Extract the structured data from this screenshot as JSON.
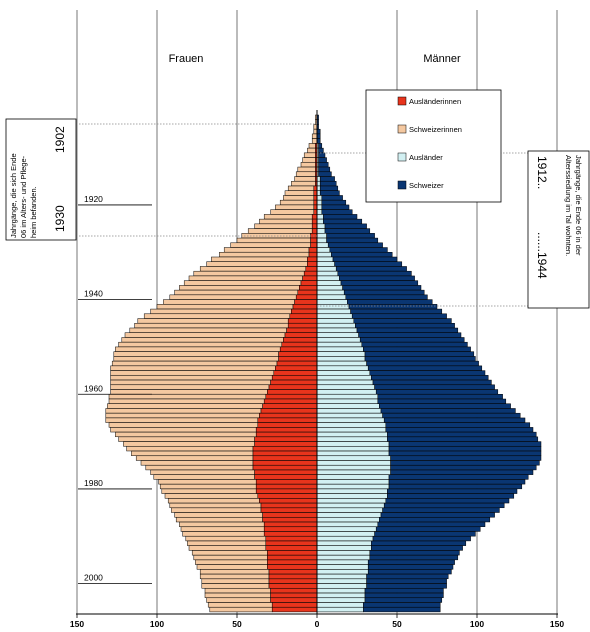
{
  "chart_data": {
    "type": "bar",
    "orientation": "horizontal-population-pyramid",
    "side_labels": {
      "left": "Frauen",
      "right": "Männer"
    },
    "legend": {
      "placement": "top-right",
      "items": [
        {
          "label": "Ausländerinnen",
          "color": "#e8341c"
        },
        {
          "label": "Schweizerinnen",
          "color": "#f4c8a0"
        },
        {
          "label": "Ausländer",
          "color": "#d2f0f2"
        },
        {
          "label": "Schweizer",
          "color": "#0a3672"
        }
      ]
    },
    "x_ticks": [
      -150,
      -100,
      -50,
      0,
      50,
      100,
      150
    ],
    "x_tick_labels": [
      "150",
      "100",
      "50",
      "0",
      "50",
      "100",
      "150"
    ],
    "xlim": [
      -150,
      150
    ],
    "year_labels": [
      "1920",
      "1940",
      "1960",
      "1980",
      "2000"
    ],
    "grid": "vertical",
    "years": [
      1902,
      1903,
      1904,
      1905,
      1906,
      1907,
      1908,
      1909,
      1910,
      1911,
      1912,
      1913,
      1914,
      1915,
      1916,
      1917,
      1918,
      1919,
      1920,
      1921,
      1922,
      1923,
      1924,
      1925,
      1926,
      1927,
      1928,
      1929,
      1930,
      1931,
      1932,
      1933,
      1934,
      1935,
      1936,
      1937,
      1938,
      1939,
      1940,
      1941,
      1942,
      1943,
      1944,
      1945,
      1946,
      1947,
      1948,
      1949,
      1950,
      1951,
      1952,
      1953,
      1954,
      1955,
      1956,
      1957,
      1958,
      1959,
      1960,
      1961,
      1962,
      1963,
      1964,
      1965,
      1966,
      1967,
      1968,
      1969,
      1970,
      1971,
      1972,
      1973,
      1974,
      1975,
      1976,
      1977,
      1978,
      1979,
      1980,
      1981,
      1982,
      1983,
      1984,
      1985,
      1986,
      1987,
      1988,
      1989,
      1990,
      1991,
      1992,
      1993,
      1994,
      1995,
      1996,
      1997,
      1998,
      1999,
      2000,
      2001,
      2002,
      2003,
      2004,
      2005,
      2006
    ],
    "series": [
      {
        "name": "Ausländerinnen",
        "values": [
          0,
          0,
          0,
          0,
          0,
          0,
          1,
          1,
          1,
          1,
          1,
          1,
          1,
          1,
          1,
          2,
          2,
          2,
          2,
          2,
          2,
          3,
          3,
          3,
          3,
          4,
          4,
          4,
          5,
          5,
          6,
          6,
          7,
          8,
          9,
          10,
          11,
          12,
          13,
          14,
          15,
          16,
          17,
          18,
          18,
          19,
          20,
          21,
          22,
          23,
          24,
          24,
          25,
          26,
          27,
          28,
          29,
          30,
          31,
          32,
          33,
          34,
          35,
          36,
          37,
          37,
          38,
          38,
          39,
          39,
          40,
          40,
          40,
          40,
          40,
          39,
          39,
          38,
          38,
          38,
          37,
          36,
          35,
          35,
          34,
          34,
          33,
          33,
          33,
          32,
          32,
          32,
          31,
          31,
          31,
          31,
          30,
          30,
          30,
          30,
          29,
          29,
          29,
          28,
          28
        ]
      },
      {
        "name": "Schweizerinnen",
        "values": [
          1,
          1,
          2,
          2,
          3,
          3,
          4,
          5,
          7,
          8,
          9,
          11,
          12,
          13,
          15,
          16,
          18,
          19,
          21,
          24,
          27,
          30,
          33,
          36,
          40,
          43,
          46,
          50,
          53,
          56,
          60,
          63,
          66,
          69,
          71,
          73,
          75,
          77,
          79,
          82,
          85,
          88,
          91,
          94,
          96,
          98,
          100,
          101,
          102,
          103,
          103,
          103,
          103,
          103,
          102,
          101,
          100,
          99,
          98,
          98,
          97,
          97,
          97,
          96,
          95,
          93,
          91,
          88,
          85,
          82,
          79,
          76,
          73,
          70,
          67,
          65,
          63,
          61,
          60,
          59,
          58,
          57,
          57,
          56,
          55,
          54,
          53,
          52,
          51,
          50,
          49,
          48,
          47,
          46,
          45,
          44,
          43,
          43,
          42,
          42,
          41,
          41,
          40,
          40,
          39
        ]
      },
      {
        "name": "Ausländer",
        "values": [
          0,
          0,
          0,
          0,
          0,
          0,
          1,
          1,
          1,
          1,
          1,
          1,
          1,
          2,
          2,
          2,
          2,
          3,
          3,
          3,
          3,
          4,
          4,
          5,
          5,
          6,
          6,
          7,
          8,
          9,
          10,
          11,
          12,
          13,
          14,
          15,
          16,
          17,
          18,
          19,
          20,
          21,
          22,
          23,
          24,
          25,
          26,
          27,
          28,
          29,
          30,
          30,
          31,
          32,
          33,
          34,
          35,
          36,
          37,
          38,
          38,
          39,
          40,
          41,
          42,
          43,
          43,
          44,
          44,
          45,
          45,
          45,
          46,
          46,
          46,
          46,
          45,
          45,
          45,
          44,
          44,
          43,
          42,
          41,
          40,
          39,
          38,
          37,
          36,
          35,
          34,
          34,
          33,
          33,
          32,
          32,
          32,
          31,
          31,
          31,
          30,
          30,
          30,
          29,
          29
        ]
      },
      {
        "name": "Schweizer",
        "values": [
          1,
          1,
          1,
          2,
          2,
          2,
          2,
          3,
          4,
          5,
          6,
          7,
          8,
          9,
          10,
          11,
          12,
          13,
          15,
          17,
          19,
          21,
          24,
          26,
          28,
          30,
          32,
          34,
          36,
          38,
          40,
          42,
          44,
          46,
          47,
          48,
          49,
          50,
          51,
          53,
          55,
          57,
          59,
          61,
          62,
          63,
          64,
          65,
          66,
          67,
          68,
          69,
          70,
          71,
          72,
          73,
          74,
          75,
          76,
          78,
          80,
          82,
          84,
          86,
          88,
          90,
          92,
          93,
          94,
          95,
          95,
          95,
          94,
          93,
          91,
          89,
          87,
          85,
          83,
          81,
          79,
          77,
          75,
          73,
          71,
          69,
          67,
          65,
          63,
          61,
          59,
          57,
          56,
          55,
          54,
          53,
          52,
          51,
          50,
          50,
          49,
          49,
          48,
          48,
          48
        ]
      }
    ]
  },
  "annotations": {
    "left_box": {
      "text": "Jahrgänge, die sich Ende 06 im Alters- und Pflege-heim befanden.",
      "year_a": "1902",
      "year_b": "1930"
    },
    "right_box": {
      "text": "Jahrgänge, die Ende 06 in der Alterssiedlung im Tal wohnten.",
      "year_a": "1912..",
      "year_b": "......1944"
    }
  }
}
